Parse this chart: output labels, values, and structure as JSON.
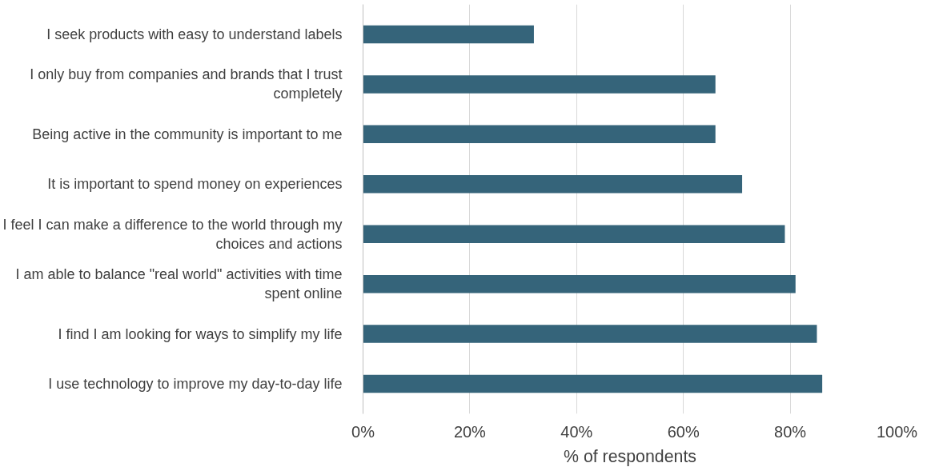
{
  "chart_data": {
    "type": "bar",
    "orientation": "horizontal",
    "xlabel": "% of respondents",
    "categories": [
      "I seek products with easy to understand labels",
      "I only buy from companies and brands that I trust completely",
      "Being active in the community is important to me",
      "It is important to spend money on experiences",
      "I feel I can make a difference to the world through my choices and actions",
      "I am able to balance \"real world\" activities with time spent online",
      "I find I am looking for ways to simplify my life",
      "I use technology to improve my day-to-day life"
    ],
    "values": [
      32,
      66,
      66,
      71,
      79,
      81,
      85,
      86
    ],
    "color": "#35647a",
    "xlim": [
      0,
      100
    ],
    "xticks": [
      {
        "value": 0,
        "label": "0%"
      },
      {
        "value": 20,
        "label": "20%"
      },
      {
        "value": 40,
        "label": "40%"
      },
      {
        "value": 60,
        "label": "60%"
      },
      {
        "value": 80,
        "label": "80%"
      },
      {
        "value": 100,
        "label": "100%"
      }
    ],
    "grid": "x"
  }
}
